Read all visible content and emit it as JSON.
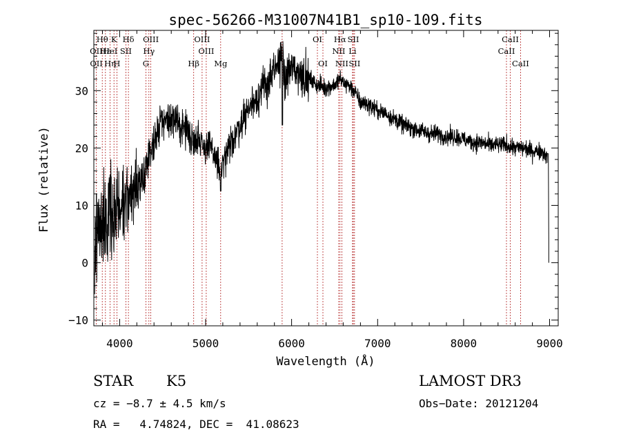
{
  "colors": {
    "spectrum": "#000000",
    "line_marker": "#b22222",
    "axes": "#000000",
    "background": "#ffffff"
  },
  "chart_data": {
    "type": "line",
    "title": "spec-56266-M31007N41B1_sp10-109.fits",
    "xlabel": "Wavelength (Å)",
    "ylabel": "Flux (relative)",
    "xlim": [
      3700,
      9100
    ],
    "ylim": [
      -11,
      40.5
    ],
    "x_ticks": [
      4000,
      5000,
      6000,
      7000,
      8000,
      9000
    ],
    "y_ticks": [
      -10,
      0,
      10,
      20,
      30
    ],
    "x_minor_step": 200,
    "y_minor_step": 2,
    "continuum_anchors": {
      "wavelength": [
        3700,
        3750,
        3800,
        3850,
        3900,
        3950,
        4000,
        4050,
        4100,
        4150,
        4200,
        4250,
        4300,
        4350,
        4400,
        4450,
        4500,
        4600,
        4700,
        4800,
        4850,
        4900,
        4950,
        5000,
        5050,
        5100,
        5150,
        5170,
        5200,
        5250,
        5300,
        5400,
        5500,
        5600,
        5700,
        5800,
        5850,
        5890,
        5920,
        5950,
        6000,
        6100,
        6200,
        6300,
        6400,
        6500,
        6560,
        6600,
        6700,
        6800,
        6900,
        7000,
        7100,
        7200,
        7300,
        7400,
        7500,
        7600,
        7700,
        7800,
        7900,
        8000,
        8100,
        8200,
        8300,
        8400,
        8500,
        8600,
        8700,
        8800,
        8900,
        8950,
        8980,
        9000
      ],
      "flux": [
        5,
        6,
        6,
        7,
        8,
        9,
        9,
        10,
        12,
        13,
        13,
        14,
        16,
        19,
        21,
        23,
        25,
        25,
        24,
        23,
        21,
        22,
        21,
        20,
        20,
        19,
        17,
        14.5,
        17,
        19,
        21,
        24,
        27,
        29,
        31,
        33,
        35,
        37,
        31,
        33,
        34,
        33,
        32,
        31,
        30.5,
        31,
        32,
        31.5,
        30.5,
        28,
        27.5,
        26.5,
        26,
        25,
        24,
        23.5,
        23,
        22.5,
        22.5,
        22,
        22,
        21.5,
        21,
        21,
        20.5,
        20.5,
        20.5,
        20,
        20,
        19.5,
        19.5,
        19,
        18,
        0
      ]
    },
    "line_labels": [
      {
        "label": "Hθ",
        "wavelength": 3798,
        "row": 0
      },
      {
        "label": "K",
        "wavelength": 3934,
        "row": 0
      },
      {
        "label": "Hδ",
        "wavelength": 4102,
        "row": 0
      },
      {
        "label": "OIII",
        "wavelength": 4363,
        "row": 0
      },
      {
        "label": "OIII",
        "wavelength": 4959,
        "row": 0
      },
      {
        "label": "OI",
        "wavelength": 6300,
        "row": 0
      },
      {
        "label": "Hα",
        "wavelength": 6563,
        "row": 0
      },
      {
        "label": "SII",
        "wavelength": 6717,
        "row": 0
      },
      {
        "label": "CaII",
        "wavelength": 8542,
        "row": 0
      },
      {
        "label": "OII",
        "wavelength": 3727,
        "row": 1
      },
      {
        "label": "Hε",
        "wavelength": 3835,
        "row": 1
      },
      {
        "label": "HeI",
        "wavelength": 3889,
        "row": 1
      },
      {
        "label": "SII",
        "wavelength": 4072,
        "row": 1
      },
      {
        "label": "Hγ",
        "wavelength": 4340,
        "row": 1
      },
      {
        "label": "OIII",
        "wavelength": 5007,
        "row": 1
      },
      {
        "label": "NII",
        "wavelength": 6548,
        "row": 1
      },
      {
        "label": "Li",
        "wavelength": 6708,
        "row": 1
      },
      {
        "label": "CaII",
        "wavelength": 8498,
        "row": 1
      },
      {
        "label": "OII",
        "wavelength": 3729,
        "row": 2
      },
      {
        "label": "Hη",
        "wavelength": 3889,
        "row": 2
      },
      {
        "label": "H",
        "wavelength": 3968,
        "row": 2
      },
      {
        "label": "G",
        "wavelength": 4305,
        "row": 2
      },
      {
        "label": "Hβ",
        "wavelength": 4861,
        "row": 2
      },
      {
        "label": "Mg",
        "wavelength": 5175,
        "row": 2
      },
      {
        "label": "OI",
        "wavelength": 6364,
        "row": 2
      },
      {
        "label": "NII",
        "wavelength": 6584,
        "row": 2
      },
      {
        "label": "SII",
        "wavelength": 6731,
        "row": 2
      },
      {
        "label": "CaII",
        "wavelength": 8662,
        "row": 2
      }
    ],
    "marker_lines": [
      3727,
      3798,
      3835,
      3889,
      3934,
      3968,
      4072,
      4102,
      4305,
      4340,
      4363,
      4861,
      4959,
      5007,
      5175,
      5890,
      6300,
      6364,
      6548,
      6563,
      6584,
      6708,
      6717,
      6731,
      8498,
      8542,
      8662
    ]
  },
  "footer": {
    "object_class": "STAR",
    "subclass": "K5",
    "survey": "LAMOST DR3",
    "cz": "cz = −8.7 ± 4.5 km/s",
    "obs_date": "Obs−Date: 20121204",
    "coords": "RA =   4.74824, DEC =  41.08623"
  }
}
